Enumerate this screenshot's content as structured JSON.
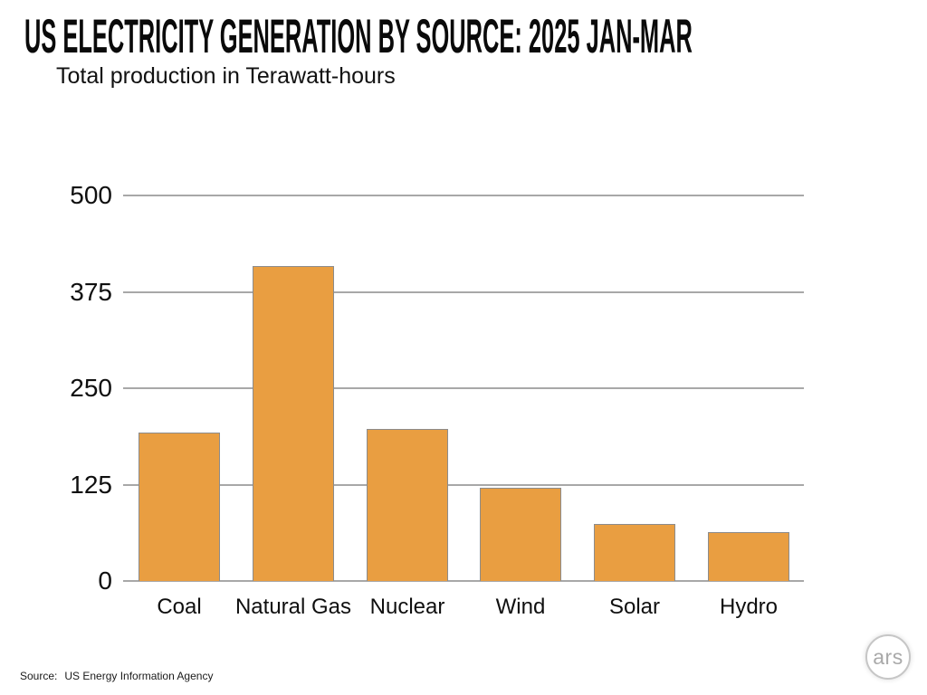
{
  "chart_data": {
    "type": "bar",
    "title": "US ELECTRICITY GENERATION BY SOURCE: 2025 JAN-MAR",
    "subtitle": "Total production in Terawatt-hours",
    "unit": "Terawatt-hours",
    "categories": [
      "Coal",
      "Natural Gas",
      "Nuclear",
      "Wind",
      "Solar",
      "Hydro"
    ],
    "values": [
      193,
      409,
      197,
      121,
      74,
      63
    ],
    "yticks": [
      0,
      125,
      250,
      375,
      500
    ],
    "ylim": [
      0,
      500
    ],
    "xlabel": "",
    "ylabel": "Total production in Terawatt-hours",
    "grid": "horizontal",
    "legend": "none",
    "colors": {
      "bar_fill": "#E99E41",
      "bar_border": "#8C8C8C",
      "gridline": "#A8A8A8",
      "title_text": "#0A0A0A",
      "logo_gray": "#A9A9A9"
    }
  },
  "footer": {
    "source_label": "Source:",
    "source_value": "US Energy Information Agency",
    "logo_text": "ars"
  }
}
